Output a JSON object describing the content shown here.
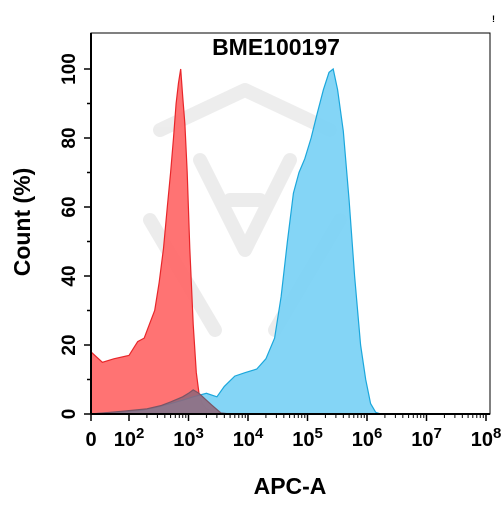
{
  "chart_data": {
    "type": "area",
    "title": "BME100197",
    "xlabel": "APC-A",
    "ylabel": "Count (%)",
    "x_scale": "biexponential",
    "xlim": [
      0,
      100000000
    ],
    "ylim": [
      0,
      100
    ],
    "grid": false,
    "corner_mark": "!",
    "x_ticks": [
      {
        "value": 0,
        "base": "0",
        "exp": ""
      },
      {
        "value": 100,
        "base": "10",
        "exp": "2"
      },
      {
        "value": 1000,
        "base": "10",
        "exp": "3"
      },
      {
        "value": 10000,
        "base": "10",
        "exp": "4"
      },
      {
        "value": 100000,
        "base": "10",
        "exp": "5"
      },
      {
        "value": 1000000,
        "base": "10",
        "exp": "6"
      },
      {
        "value": 10000000,
        "base": "10",
        "exp": "7"
      },
      {
        "value": 100000000,
        "base": "10",
        "exp": "8"
      }
    ],
    "y_ticks": [
      0,
      20,
      40,
      60,
      80,
      100
    ],
    "series": [
      {
        "color": "#ff6b6b",
        "stroke": "#e8262a",
        "points": [
          [
            0,
            18
          ],
          [
            30,
            15
          ],
          [
            60,
            16
          ],
          [
            100,
            17
          ],
          [
            140,
            21
          ],
          [
            180,
            22
          ],
          [
            220,
            26
          ],
          [
            270,
            30
          ],
          [
            320,
            38
          ],
          [
            380,
            48
          ],
          [
            440,
            60
          ],
          [
            500,
            70
          ],
          [
            560,
            80
          ],
          [
            620,
            90
          ],
          [
            680,
            96
          ],
          [
            740,
            100
          ],
          [
            800,
            92
          ],
          [
            870,
            84
          ],
          [
            950,
            70
          ],
          [
            1050,
            48
          ],
          [
            1200,
            26
          ],
          [
            1350,
            12
          ],
          [
            1500,
            6
          ],
          [
            1700,
            3
          ],
          [
            2000,
            1.5
          ],
          [
            2500,
            0.8
          ],
          [
            3500,
            0.3
          ],
          [
            5000,
            0
          ]
        ]
      },
      {
        "color": "#7dd3f5",
        "stroke": "#1ba7dc",
        "points": [
          [
            0,
            0
          ],
          [
            150,
            1
          ],
          [
            300,
            2
          ],
          [
            500,
            3
          ],
          [
            800,
            4
          ],
          [
            1200,
            5
          ],
          [
            2000,
            6
          ],
          [
            3000,
            5
          ],
          [
            4000,
            8
          ],
          [
            6000,
            11
          ],
          [
            9000,
            12
          ],
          [
            14000,
            13
          ],
          [
            20000,
            16
          ],
          [
            28000,
            22
          ],
          [
            36000,
            34
          ],
          [
            46000,
            50
          ],
          [
            58000,
            64
          ],
          [
            72000,
            70
          ],
          [
            90000,
            74
          ],
          [
            115000,
            80
          ],
          [
            145000,
            87
          ],
          [
            185000,
            94
          ],
          [
            230000,
            99
          ],
          [
            270000,
            100
          ],
          [
            320000,
            94
          ],
          [
            400000,
            82
          ],
          [
            500000,
            62
          ],
          [
            620000,
            40
          ],
          [
            780000,
            20
          ],
          [
            950000,
            10
          ],
          [
            1150000,
            3
          ],
          [
            1400000,
            0.5
          ],
          [
            1700000,
            0
          ],
          [
            100000000,
            0
          ]
        ]
      },
      {
        "color": "#8f6578",
        "stroke": "#7a5566",
        "points": [
          [
            0,
            0
          ],
          [
            50,
            0.5
          ],
          [
            100,
            1
          ],
          [
            200,
            1.5
          ],
          [
            350,
            2.5
          ],
          [
            500,
            3.5
          ],
          [
            800,
            5
          ],
          [
            1000,
            6
          ],
          [
            1200,
            7
          ],
          [
            1500,
            6
          ],
          [
            2000,
            4
          ],
          [
            2500,
            2.5
          ],
          [
            3500,
            0.3
          ],
          [
            5000,
            0
          ]
        ]
      }
    ]
  }
}
